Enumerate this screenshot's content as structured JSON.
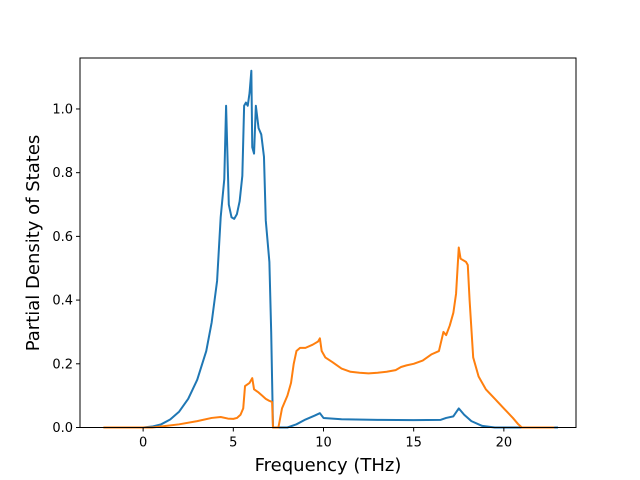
{
  "chart_data": {
    "type": "line",
    "title": "",
    "xlabel": "Frequency (THz)",
    "ylabel": "Partial Density of States",
    "xlim": [
      -3.5,
      24.0
    ],
    "ylim": [
      0.0,
      1.16
    ],
    "xticks": [
      0,
      5,
      10,
      15,
      20
    ],
    "yticks": [
      0.0,
      0.2,
      0.4,
      0.6,
      0.8,
      1.0
    ],
    "xtick_labels": [
      "0",
      "5",
      "10",
      "15",
      "20"
    ],
    "ytick_labels": [
      "0.0",
      "0.2",
      "0.4",
      "0.6",
      "0.8",
      "1.0"
    ],
    "grid": false,
    "legend": "none",
    "colors": [
      "#1f77b4",
      "#ff7f0e"
    ],
    "series": [
      {
        "color": "#1f77b4",
        "points": [
          [
            -2.2,
            0.0
          ],
          [
            0.0,
            0.0
          ],
          [
            0.5,
            0.003
          ],
          [
            1.0,
            0.01
          ],
          [
            1.5,
            0.025
          ],
          [
            2.0,
            0.05
          ],
          [
            2.5,
            0.09
          ],
          [
            3.0,
            0.15
          ],
          [
            3.5,
            0.24
          ],
          [
            3.8,
            0.33
          ],
          [
            4.1,
            0.46
          ],
          [
            4.3,
            0.66
          ],
          [
            4.5,
            0.78
          ],
          [
            4.6,
            1.01
          ],
          [
            4.75,
            0.7
          ],
          [
            4.9,
            0.66
          ],
          [
            5.05,
            0.655
          ],
          [
            5.2,
            0.67
          ],
          [
            5.35,
            0.71
          ],
          [
            5.5,
            0.79
          ],
          [
            5.6,
            1.01
          ],
          [
            5.7,
            1.02
          ],
          [
            5.8,
            1.01
          ],
          [
            5.9,
            1.05
          ],
          [
            6.0,
            1.12
          ],
          [
            6.05,
            0.88
          ],
          [
            6.15,
            0.86
          ],
          [
            6.25,
            1.01
          ],
          [
            6.4,
            0.94
          ],
          [
            6.55,
            0.92
          ],
          [
            6.7,
            0.85
          ],
          [
            6.8,
            0.65
          ],
          [
            7.0,
            0.52
          ],
          [
            7.1,
            0.3
          ],
          [
            7.2,
            0.0
          ],
          [
            8.0,
            0.0
          ],
          [
            8.5,
            0.01
          ],
          [
            9.0,
            0.025
          ],
          [
            9.5,
            0.037
          ],
          [
            9.8,
            0.045
          ],
          [
            10.0,
            0.03
          ],
          [
            11.0,
            0.026
          ],
          [
            13.0,
            0.024
          ],
          [
            15.0,
            0.023
          ],
          [
            16.5,
            0.024
          ],
          [
            16.8,
            0.03
          ],
          [
            17.2,
            0.035
          ],
          [
            17.5,
            0.06
          ],
          [
            17.8,
            0.04
          ],
          [
            18.2,
            0.02
          ],
          [
            18.8,
            0.005
          ],
          [
            19.5,
            0.0
          ],
          [
            23.0,
            0.0
          ]
        ]
      },
      {
        "color": "#ff7f0e",
        "points": [
          [
            -2.2,
            0.0
          ],
          [
            0.0,
            0.0
          ],
          [
            0.5,
            0.0
          ],
          [
            1.0,
            0.003
          ],
          [
            2.0,
            0.01
          ],
          [
            3.0,
            0.02
          ],
          [
            3.8,
            0.03
          ],
          [
            4.3,
            0.033
          ],
          [
            4.7,
            0.028
          ],
          [
            5.0,
            0.027
          ],
          [
            5.2,
            0.03
          ],
          [
            5.4,
            0.04
          ],
          [
            5.55,
            0.06
          ],
          [
            5.65,
            0.13
          ],
          [
            5.9,
            0.14
          ],
          [
            6.05,
            0.155
          ],
          [
            6.15,
            0.12
          ],
          [
            6.4,
            0.11
          ],
          [
            6.6,
            0.1
          ],
          [
            6.8,
            0.09
          ],
          [
            6.95,
            0.085
          ],
          [
            7.15,
            0.08
          ],
          [
            7.2,
            0.0
          ],
          [
            7.5,
            0.0
          ],
          [
            7.7,
            0.06
          ],
          [
            8.0,
            0.1
          ],
          [
            8.2,
            0.14
          ],
          [
            8.35,
            0.2
          ],
          [
            8.5,
            0.24
          ],
          [
            8.7,
            0.25
          ],
          [
            9.0,
            0.25
          ],
          [
            9.4,
            0.26
          ],
          [
            9.7,
            0.27
          ],
          [
            9.8,
            0.28
          ],
          [
            9.9,
            0.24
          ],
          [
            10.1,
            0.22
          ],
          [
            10.5,
            0.205
          ],
          [
            11.0,
            0.185
          ],
          [
            11.5,
            0.175
          ],
          [
            12.0,
            0.172
          ],
          [
            12.5,
            0.17
          ],
          [
            13.0,
            0.172
          ],
          [
            13.5,
            0.175
          ],
          [
            14.0,
            0.18
          ],
          [
            14.3,
            0.19
          ],
          [
            14.6,
            0.195
          ],
          [
            15.0,
            0.2
          ],
          [
            15.5,
            0.21
          ],
          [
            16.0,
            0.23
          ],
          [
            16.4,
            0.24
          ],
          [
            16.65,
            0.3
          ],
          [
            16.8,
            0.29
          ],
          [
            17.0,
            0.32
          ],
          [
            17.2,
            0.36
          ],
          [
            17.35,
            0.42
          ],
          [
            17.5,
            0.565
          ],
          [
            17.6,
            0.53
          ],
          [
            17.9,
            0.52
          ],
          [
            18.0,
            0.51
          ],
          [
            18.1,
            0.4
          ],
          [
            18.3,
            0.22
          ],
          [
            18.6,
            0.16
          ],
          [
            19.0,
            0.12
          ],
          [
            19.5,
            0.09
          ],
          [
            20.0,
            0.06
          ],
          [
            20.5,
            0.03
          ],
          [
            20.8,
            0.01
          ],
          [
            21.0,
            0.0
          ],
          [
            22.8,
            0.0
          ]
        ]
      }
    ]
  }
}
